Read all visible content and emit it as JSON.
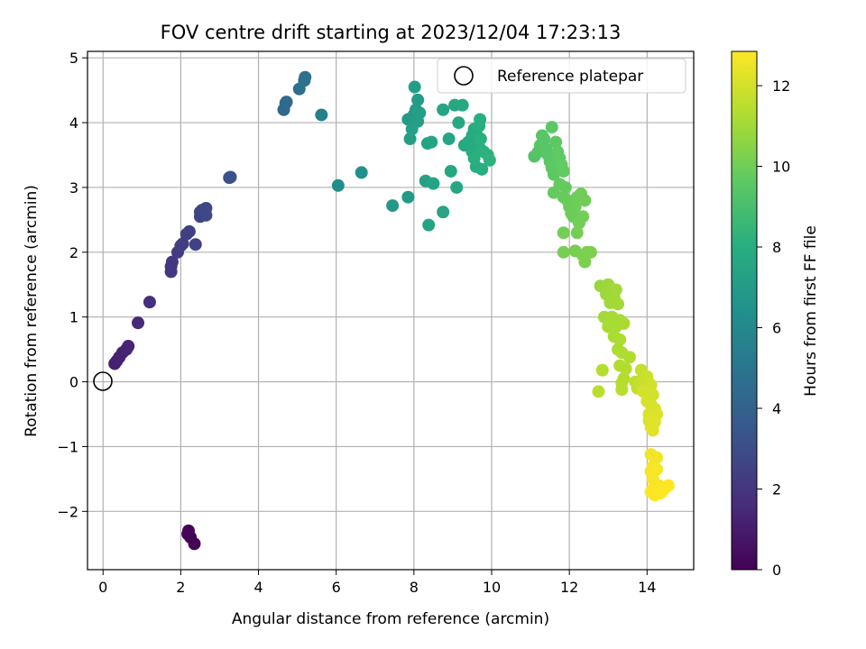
{
  "chart_data": {
    "type": "scatter",
    "title": "FOV centre drift starting at 2023/12/04 17:23:13",
    "xlabel": "Angular distance from reference (arcmin)",
    "ylabel": "Rotation from reference (arcmin)",
    "xlim": [
      -0.4,
      15.2
    ],
    "ylim": [
      -2.9,
      5.1
    ],
    "xticks": [
      0,
      2,
      4,
      6,
      8,
      10,
      12,
      14
    ],
    "yticks": [
      -2,
      -1,
      0,
      1,
      2,
      3,
      4,
      5
    ],
    "ytick_labels": [
      "−2",
      "−1",
      "0",
      "1",
      "2",
      "3",
      "4",
      "5"
    ],
    "grid": true,
    "legend": {
      "position": "upper-right",
      "entries": [
        "Reference platepar"
      ]
    },
    "reference_point": {
      "x": 0,
      "y": 0
    },
    "colorbar": {
      "label": "Hours from first FF file",
      "min": 0,
      "max": 12.85,
      "ticks": [
        0,
        2,
        4,
        6,
        8,
        10,
        12
      ],
      "colormap": "viridis"
    },
    "points": [
      [
        2.2,
        -2.3,
        0.0
      ],
      [
        2.25,
        -2.4,
        0.05
      ],
      [
        2.35,
        -2.5,
        0.1
      ],
      [
        2.18,
        -2.35,
        0.15
      ],
      [
        0.3,
        0.28,
        1.1
      ],
      [
        0.35,
        0.32,
        1.15
      ],
      [
        0.42,
        0.38,
        1.2
      ],
      [
        0.5,
        0.45,
        1.25
      ],
      [
        0.6,
        0.5,
        1.3
      ],
      [
        0.65,
        0.55,
        1.35
      ],
      [
        0.9,
        0.91,
        1.5
      ],
      [
        1.2,
        1.23,
        1.7
      ],
      [
        1.75,
        1.7,
        2.0
      ],
      [
        1.75,
        1.78,
        2.05
      ],
      [
        1.78,
        1.85,
        2.1
      ],
      [
        1.92,
        2.0,
        2.2
      ],
      [
        2.0,
        2.1,
        2.3
      ],
      [
        2.05,
        2.13,
        2.35
      ],
      [
        2.15,
        2.28,
        2.4
      ],
      [
        2.22,
        2.32,
        2.45
      ],
      [
        2.38,
        2.12,
        2.5
      ],
      [
        2.5,
        2.55,
        2.6
      ],
      [
        2.5,
        2.62,
        2.65
      ],
      [
        2.55,
        2.65,
        2.7
      ],
      [
        2.65,
        2.68,
        2.75
      ],
      [
        2.65,
        2.57,
        2.8
      ],
      [
        3.25,
        3.15,
        3.1
      ],
      [
        3.28,
        3.16,
        3.15
      ],
      [
        4.65,
        4.2,
        4.3
      ],
      [
        4.7,
        4.3,
        4.35
      ],
      [
        4.72,
        4.32,
        4.4
      ],
      [
        5.05,
        4.52,
        4.6
      ],
      [
        5.2,
        4.7,
        4.7
      ],
      [
        5.18,
        4.65,
        4.75
      ],
      [
        5.62,
        4.12,
        5.5
      ],
      [
        6.05,
        3.03,
        6.2
      ],
      [
        6.65,
        3.23,
        6.5
      ],
      [
        7.45,
        2.72,
        6.8
      ],
      [
        7.85,
        2.85,
        6.9
      ],
      [
        7.85,
        4.05,
        7.0
      ],
      [
        8.0,
        4.12,
        7.0
      ],
      [
        8.05,
        4.2,
        7.05
      ],
      [
        8.1,
        4.35,
        7.1
      ],
      [
        8.02,
        4.55,
        7.1
      ],
      [
        8.15,
        4.15,
        7.15
      ],
      [
        8.1,
        4.02,
        7.2
      ],
      [
        7.9,
        3.75,
        7.2
      ],
      [
        7.95,
        3.9,
        7.25
      ],
      [
        8.3,
        3.1,
        7.3
      ],
      [
        8.35,
        3.68,
        7.35
      ],
      [
        8.45,
        3.7,
        7.4
      ],
      [
        8.5,
        3.06,
        7.4
      ],
      [
        8.38,
        2.42,
        7.45
      ],
      [
        8.75,
        2.62,
        7.5
      ],
      [
        8.75,
        4.2,
        7.5
      ],
      [
        8.9,
        3.75,
        7.55
      ],
      [
        8.95,
        3.25,
        7.6
      ],
      [
        9.05,
        4.27,
        7.6
      ],
      [
        9.1,
        3.0,
        7.65
      ],
      [
        9.15,
        4.0,
        7.7
      ],
      [
        9.25,
        4.27,
        7.7
      ],
      [
        9.3,
        3.65,
        7.75
      ],
      [
        9.4,
        3.7,
        7.8
      ],
      [
        9.5,
        3.8,
        7.8
      ],
      [
        9.55,
        3.9,
        7.85
      ],
      [
        9.6,
        3.85,
        7.85
      ],
      [
        9.65,
        3.7,
        7.9
      ],
      [
        9.5,
        3.55,
        7.9
      ],
      [
        9.6,
        3.32,
        7.95
      ],
      [
        9.7,
        3.6,
        8.0
      ],
      [
        9.75,
        3.28,
        8.0
      ],
      [
        9.7,
        4.05,
        8.05
      ],
      [
        9.68,
        3.95,
        8.05
      ],
      [
        9.72,
        3.75,
        8.1
      ],
      [
        9.55,
        3.45,
        8.1
      ],
      [
        9.8,
        3.55,
        8.15
      ],
      [
        9.9,
        3.5,
        8.2
      ],
      [
        9.95,
        3.42,
        8.25
      ],
      [
        11.1,
        3.48,
        9.3
      ],
      [
        11.2,
        3.55,
        9.35
      ],
      [
        11.25,
        3.65,
        9.4
      ],
      [
        11.3,
        3.8,
        9.4
      ],
      [
        11.35,
        3.75,
        9.45
      ],
      [
        11.4,
        3.6,
        9.45
      ],
      [
        11.45,
        3.5,
        9.5
      ],
      [
        11.5,
        3.4,
        9.5
      ],
      [
        11.55,
        3.3,
        9.55
      ],
      [
        11.6,
        3.2,
        9.55
      ],
      [
        11.55,
        3.93,
        9.6
      ],
      [
        11.65,
        3.7,
        9.6
      ],
      [
        11.7,
        3.55,
        9.65
      ],
      [
        11.75,
        3.45,
        9.65
      ],
      [
        11.8,
        3.35,
        9.7
      ],
      [
        11.85,
        3.25,
        9.7
      ],
      [
        11.6,
        2.92,
        9.75
      ],
      [
        11.75,
        3.05,
        9.75
      ],
      [
        11.9,
        3.0,
        9.8
      ],
      [
        11.85,
        2.85,
        9.8
      ],
      [
        11.95,
        2.8,
        9.85
      ],
      [
        12.0,
        2.7,
        9.85
      ],
      [
        12.05,
        2.6,
        9.9
      ],
      [
        12.1,
        2.55,
        9.9
      ],
      [
        12.15,
        2.7,
        9.95
      ],
      [
        12.2,
        2.85,
        9.95
      ],
      [
        12.3,
        2.9,
        10.0
      ],
      [
        12.4,
        2.8,
        10.0
      ],
      [
        12.35,
        2.55,
        10.05
      ],
      [
        12.25,
        2.45,
        10.05
      ],
      [
        12.2,
        2.3,
        10.1
      ],
      [
        11.85,
        2.3,
        10.1
      ],
      [
        11.85,
        2.0,
        10.15
      ],
      [
        12.15,
        2.02,
        10.15
      ],
      [
        12.35,
        1.95,
        10.2
      ],
      [
        12.45,
        2.0,
        10.2
      ],
      [
        12.55,
        2.0,
        10.25
      ],
      [
        12.4,
        1.85,
        10.25
      ],
      [
        12.8,
        1.48,
        10.8
      ],
      [
        12.9,
        1.45,
        10.85
      ],
      [
        12.95,
        1.35,
        10.9
      ],
      [
        13.0,
        1.5,
        10.9
      ],
      [
        13.1,
        1.4,
        10.95
      ],
      [
        13.15,
        1.3,
        10.95
      ],
      [
        13.2,
        1.42,
        11.0
      ],
      [
        13.05,
        1.22,
        11.0
      ],
      [
        13.25,
        1.2,
        11.05
      ],
      [
        12.9,
        1.0,
        11.05
      ],
      [
        13.1,
        1.0,
        11.1
      ],
      [
        13.3,
        0.95,
        11.1
      ],
      [
        13.0,
        0.85,
        11.15
      ],
      [
        13.2,
        0.85,
        11.15
      ],
      [
        13.4,
        0.9,
        11.2
      ],
      [
        13.15,
        0.7,
        11.2
      ],
      [
        13.3,
        0.65,
        11.25
      ],
      [
        13.25,
        0.5,
        11.25
      ],
      [
        13.35,
        0.45,
        11.3
      ],
      [
        13.55,
        0.38,
        11.3
      ],
      [
        13.3,
        0.25,
        11.35
      ],
      [
        13.45,
        0.2,
        11.35
      ],
      [
        12.85,
        0.18,
        11.4
      ],
      [
        13.4,
        0.05,
        11.4
      ],
      [
        13.35,
        -0.02,
        11.45
      ],
      [
        13.35,
        -0.12,
        11.45
      ],
      [
        12.75,
        -0.15,
        11.5
      ],
      [
        13.7,
        0.0,
        11.6
      ],
      [
        13.75,
        -0.1,
        11.65
      ],
      [
        13.85,
        0.18,
        11.7
      ],
      [
        13.9,
        0.05,
        11.75
      ],
      [
        13.95,
        -0.05,
        11.8
      ],
      [
        14.0,
        0.08,
        11.85
      ],
      [
        14.05,
        -0.15,
        11.9
      ],
      [
        14.1,
        -0.05,
        11.95
      ],
      [
        14.15,
        -0.2,
        12.0
      ],
      [
        13.9,
        -0.15,
        12.0
      ],
      [
        14.0,
        -0.3,
        12.05
      ],
      [
        14.1,
        -0.35,
        12.05
      ],
      [
        14.2,
        -0.42,
        12.1
      ],
      [
        14.05,
        -0.5,
        12.1
      ],
      [
        14.15,
        -0.55,
        12.15
      ],
      [
        14.25,
        -0.5,
        12.15
      ],
      [
        14.05,
        -0.6,
        12.2
      ],
      [
        14.1,
        -0.7,
        12.2
      ],
      [
        14.15,
        -0.75,
        12.25
      ],
      [
        14.2,
        -0.62,
        12.25
      ],
      [
        14.1,
        -1.12,
        12.6
      ],
      [
        14.25,
        -1.17,
        12.62
      ],
      [
        14.15,
        -1.3,
        12.65
      ],
      [
        14.1,
        -1.38,
        12.65
      ],
      [
        14.25,
        -1.35,
        12.68
      ],
      [
        14.15,
        -1.5,
        12.7
      ],
      [
        14.3,
        -1.6,
        12.72
      ],
      [
        14.15,
        -1.65,
        12.75
      ],
      [
        14.3,
        -1.7,
        12.78
      ],
      [
        14.45,
        -1.65,
        12.8
      ],
      [
        14.2,
        -1.75,
        12.82
      ],
      [
        14.35,
        -1.72,
        12.84
      ],
      [
        14.55,
        -1.6,
        12.85
      ],
      [
        14.1,
        -1.7,
        12.85
      ]
    ]
  }
}
